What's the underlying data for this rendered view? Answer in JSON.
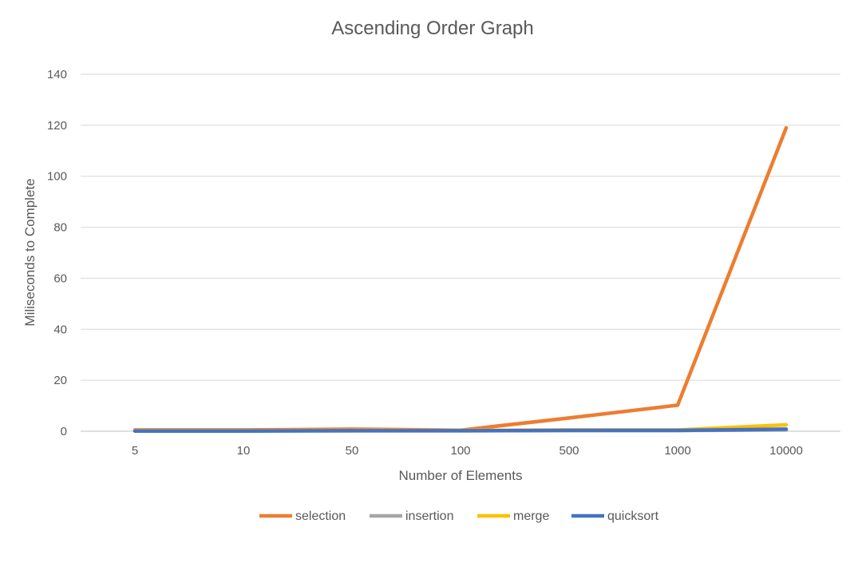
{
  "chart_data": {
    "type": "line",
    "title": "Ascending Order Graph",
    "xlabel": "Number of Elements",
    "ylabel": "Miliseconds to Complete",
    "categories": [
      "5",
      "10",
      "50",
      "100",
      "500",
      "1000",
      "10000"
    ],
    "ylim": [
      0,
      140
    ],
    "yticks": [
      "0",
      "20",
      "40",
      "60",
      "80",
      "100",
      "120",
      "140"
    ],
    "grid": true,
    "legend_position": "bottom",
    "series": [
      {
        "name": "selection",
        "color": "#ED7D31",
        "values": [
          0.5,
          0.5,
          0.8,
          0.4,
          5.2,
          10.2,
          119
        ]
      },
      {
        "name": "insertion",
        "color": "#A5A5A5",
        "values": [
          0.2,
          0.2,
          0.2,
          0.2,
          0.3,
          0.3,
          0.5
        ]
      },
      {
        "name": "merge",
        "color": "#FFC000",
        "values": [
          0.2,
          0.2,
          0.3,
          0.3,
          0.5,
          0.5,
          2.5
        ]
      },
      {
        "name": "quicksort",
        "color": "#4472C4",
        "values": [
          0.1,
          0.1,
          0.2,
          0.2,
          0.3,
          0.3,
          0.8
        ]
      }
    ]
  }
}
